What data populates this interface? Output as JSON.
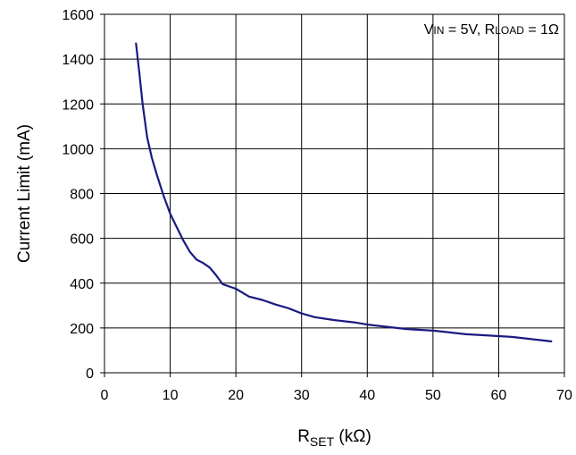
{
  "chart_data": {
    "type": "line",
    "xlabel": "R",
    "xlabel_sub": "SET",
    "xlabel_unit": " (kΩ)",
    "ylabel": "Current Limit (mA)",
    "xlim": [
      0,
      70
    ],
    "ylim": [
      0,
      1600
    ],
    "x_ticks": [
      0,
      10,
      20,
      30,
      40,
      50,
      60,
      70
    ],
    "y_ticks": [
      0,
      200,
      400,
      600,
      800,
      1000,
      1200,
      1400,
      1600
    ],
    "grid": true,
    "annotation": {
      "v": "V",
      "v_sub": "IN",
      "v_val": " = 5V, ",
      "r": "R",
      "r_sub": "LOAD",
      "r_val": " = 1Ω",
      "placement": "top-right"
    },
    "line_color": "#1a1a80",
    "series": [
      {
        "x": [
          4.8,
          5.3,
          5.8,
          6.5,
          7.2,
          8.0,
          9.0,
          10.0,
          11.0,
          12.0,
          13.0,
          14.0,
          15.0,
          16.0,
          17.0,
          18.0,
          19.0,
          20.0,
          22.0,
          24.0,
          26.0,
          28.0,
          30.0,
          32.0,
          35.0,
          38.0,
          40.0,
          43.0,
          46.0,
          50.0,
          52.0,
          55.0,
          58.0,
          62.0,
          65.0,
          68.0
        ],
        "y": [
          1470,
          1340,
          1200,
          1050,
          960,
          880,
          790,
          710,
          650,
          590,
          540,
          505,
          490,
          470,
          435,
          395,
          385,
          375,
          340,
          325,
          305,
          288,
          265,
          248,
          235,
          225,
          215,
          205,
          195,
          188,
          182,
          172,
          167,
          160,
          150,
          140
        ]
      }
    ]
  }
}
